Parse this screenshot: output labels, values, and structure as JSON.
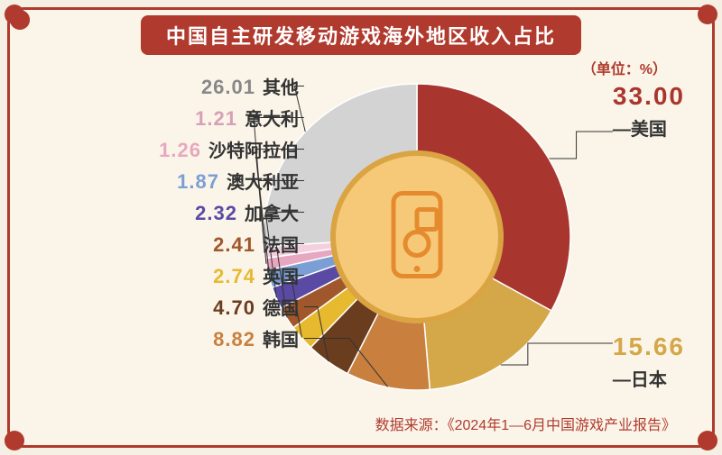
{
  "title": "中国自主研发移动游戏海外地区收入占比",
  "unit": "（单位：%）",
  "source": "数据来源：《2024年1—6月中国游戏产业报告》",
  "chart": {
    "type": "donut",
    "outer_radius": 170,
    "inner_radius": 95,
    "center_fill": "#f6c978",
    "center_stroke": "#d9a441",
    "icon_color": "#e68a2e",
    "background": "#fbf5e9",
    "start_angle_deg": -90,
    "slices": [
      {
        "label": "美国",
        "value": 33.0,
        "color": "#a9362e",
        "val_fontsize": 28,
        "val_color": "#a9362e"
      },
      {
        "label": "日本",
        "value": 15.66,
        "color": "#d4a849",
        "val_fontsize": 28,
        "val_color": "#d4a849"
      },
      {
        "label": "韩国",
        "value": 8.82,
        "color": "#c97f3e",
        "val_fontsize": 22,
        "val_color": "#c97f3e"
      },
      {
        "label": "德国",
        "value": 4.7,
        "color": "#6b3d1f",
        "val_fontsize": 22,
        "val_color": "#6b3d1f"
      },
      {
        "label": "英国",
        "value": 2.74,
        "color": "#e6b92e",
        "val_fontsize": 22,
        "val_color": "#e6b92e"
      },
      {
        "label": "法国",
        "value": 2.41,
        "color": "#a0572b",
        "val_fontsize": 22,
        "val_color": "#a0572b"
      },
      {
        "label": "加拿大",
        "value": 2.32,
        "color": "#5a4aa3",
        "val_fontsize": 22,
        "val_color": "#5a4aa3"
      },
      {
        "label": "澳大利亚",
        "value": 1.87,
        "color": "#7b9fd4",
        "val_fontsize": 22,
        "val_color": "#7b9fd4"
      },
      {
        "label": "沙特阿拉伯",
        "value": 1.26,
        "color": "#e8a7c0",
        "val_fontsize": 22,
        "val_color": "#e8a7c0"
      },
      {
        "label": "意大利",
        "value": 1.21,
        "color": "#f4d0df",
        "val_fontsize": 22,
        "val_color": "#d8a0b8"
      },
      {
        "label": "其他",
        "value": 26.01,
        "color": "#d3d3d3",
        "val_fontsize": 22,
        "val_color": "#888888"
      }
    ]
  }
}
